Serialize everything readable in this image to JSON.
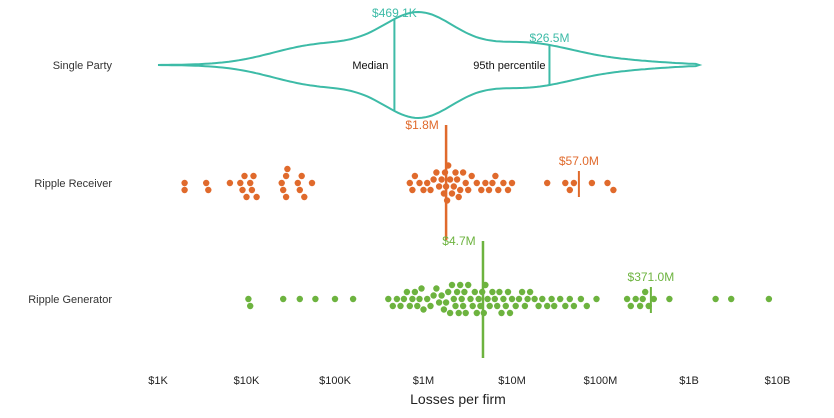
{
  "chart_data": {
    "type": "scatter",
    "xlabel": "Losses per firm",
    "xscale": "log10",
    "xlim": [
      1000,
      10000000000
    ],
    "ticks": [
      {
        "value": 1000,
        "label": "$1K"
      },
      {
        "value": 10000,
        "label": "$10K"
      },
      {
        "value": 100000,
        "label": "$100K"
      },
      {
        "value": 1000000,
        "label": "$1M"
      },
      {
        "value": 10000000,
        "label": "$10M"
      },
      {
        "value": 100000000,
        "label": "$100M"
      },
      {
        "value": 1000000000,
        "label": "$1B"
      },
      {
        "value": 10000000000,
        "label": "$10B"
      }
    ],
    "series": [
      {
        "name": "Single Party",
        "kind": "violin",
        "color": "#3dbba7",
        "median": {
          "value": 469100,
          "label": "$469.1K"
        },
        "p95": {
          "value": 26500000,
          "label": "$26.5M"
        },
        "median_text": "Median",
        "p95_text": "95th percentile",
        "range": [
          1000,
          1300000000
        ]
      },
      {
        "name": "Ripple Receiver",
        "kind": "beeswarm",
        "color": "#e06a2c",
        "median": {
          "value": 1800000,
          "label": "$1.8M"
        },
        "p95": {
          "value": 57000000,
          "label": "$57.0M"
        },
        "points": [
          2000,
          2000,
          3500,
          3700,
          6500,
          8500,
          9000,
          9500,
          10000,
          11000,
          11500,
          12000,
          13000,
          25000,
          26000,
          28000,
          28000,
          29000,
          38000,
          40000,
          42000,
          45000,
          55000,
          700000,
          750000,
          800000,
          900000,
          1000000,
          1100000,
          1200000,
          1300000,
          1400000,
          1500000,
          1600000,
          1700000,
          1750000,
          1800000,
          1850000,
          1900000,
          2000000,
          2100000,
          2200000,
          2300000,
          2400000,
          2500000,
          2600000,
          2800000,
          3000000,
          3200000,
          3500000,
          4000000,
          4500000,
          5000000,
          5500000,
          6000000,
          6500000,
          7000000,
          8000000,
          9000000,
          10000000,
          25000000,
          40000000,
          45000000,
          50000000,
          80000000,
          120000000,
          140000000
        ]
      },
      {
        "name": "Ripple Generator",
        "kind": "beeswarm",
        "color": "#6db33f",
        "median": {
          "value": 4700000,
          "label": "$4.7M"
        },
        "p95": {
          "value": 371000000,
          "label": "$371.0M"
        },
        "points": [
          10500,
          11000,
          26000,
          40000,
          60000,
          100000,
          160000,
          400000,
          450000,
          500000,
          550000,
          600000,
          650000,
          700000,
          750000,
          800000,
          850000,
          900000,
          950000,
          1000000,
          1100000,
          1200000,
          1300000,
          1400000,
          1500000,
          1600000,
          1700000,
          1800000,
          1900000,
          2000000,
          2100000,
          2200000,
          2300000,
          2400000,
          2500000,
          2600000,
          2700000,
          2800000,
          2900000,
          3000000,
          3200000,
          3400000,
          3600000,
          3800000,
          4000000,
          4200000,
          4400000,
          4600000,
          4800000,
          5000000,
          5300000,
          5600000,
          6000000,
          6400000,
          6800000,
          7200000,
          7600000,
          8000000,
          8500000,
          9000000,
          9500000,
          10000000,
          11000000,
          12000000,
          13000000,
          14000000,
          15000000,
          16000000,
          18000000,
          20000000,
          22000000,
          25000000,
          28000000,
          30000000,
          35000000,
          40000000,
          45000000,
          50000000,
          60000000,
          70000000,
          90000000,
          200000000,
          220000000,
          250000000,
          280000000,
          300000000,
          320000000,
          350000000,
          400000000,
          600000000,
          2000000000,
          3000000000,
          8000000000
        ]
      }
    ]
  }
}
